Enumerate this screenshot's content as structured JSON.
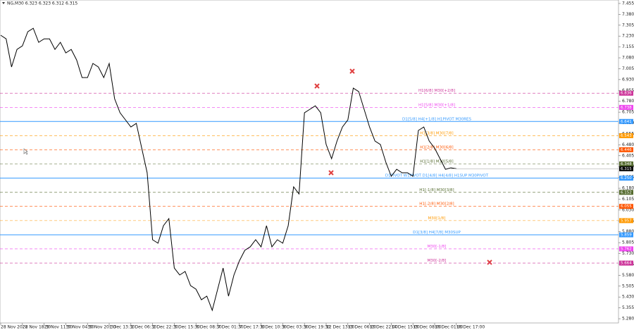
{
  "chart_data": {
    "type": "line",
    "title": "NG,M30  6.323 6.323 6.312 6.315",
    "categories": [
      "28 Nov 2022",
      null,
      null,
      null,
      "28 Nov 18:30",
      null,
      null,
      null,
      "29 Nov 11:30",
      null,
      null,
      null,
      "30 Nov 04:30",
      null,
      null,
      null,
      "30 Nov 20:30",
      null,
      null,
      null,
      "1 Dec 13:30",
      null,
      null,
      null,
      "2 Dec 06:30",
      null,
      null,
      null,
      "2 Dec 22:30",
      null,
      null,
      null,
      "5 Dec 15:30",
      null,
      null,
      null,
      "6 Dec 08:30",
      null,
      null,
      null,
      "7 Dec 01:30",
      null,
      null,
      null,
      "7 Dec 17:30",
      null,
      null,
      null,
      "8 Dec 10:30",
      null,
      null,
      null,
      "9 Dec 03:30",
      null,
      null,
      null,
      "9 Dec 19:30",
      null,
      null,
      null,
      "12 Dec 13:00",
      null,
      null,
      null,
      "13 Dec 06:00",
      null,
      null,
      null,
      "13 Dec 22:00",
      null,
      null,
      null,
      "14 Dec 15:00",
      null,
      null,
      null,
      "15 Dec 08:00",
      null,
      null,
      null,
      "16 Dec 01:00",
      null,
      null,
      null,
      "16 Dec 17:00"
    ],
    "series": [
      {
        "name": "NG,M30",
        "color": "#000000",
        "values": [
          7.236,
          7.211,
          7.017,
          7.138,
          7.163,
          7.26,
          7.284,
          7.187,
          7.211,
          7.211,
          7.138,
          7.187,
          7.114,
          7.138,
          7.065,
          6.944,
          6.944,
          7.041,
          7.017,
          6.944,
          7.041,
          6.798,
          6.701,
          6.652,
          6.603,
          6.628,
          6.457,
          6.287,
          5.825,
          5.801,
          5.922,
          5.971,
          5.63,
          5.582,
          5.606,
          5.509,
          5.484,
          5.411,
          5.436,
          5.338,
          5.484,
          5.63,
          5.436,
          5.582,
          5.679,
          5.752,
          5.776,
          5.825,
          5.776,
          5.922,
          5.776,
          5.825,
          5.801,
          5.922,
          6.19,
          6.141,
          6.701,
          6.725,
          6.749,
          6.701,
          6.482,
          6.384,
          6.506,
          6.603,
          6.652,
          6.871,
          6.847,
          6.725,
          6.603,
          6.506,
          6.482,
          6.36,
          6.263,
          6.311,
          6.287,
          6.287,
          6.263,
          6.579,
          6.603,
          6.506,
          6.457,
          6.384,
          6.311,
          6.321,
          6.315
        ]
      }
    ],
    "ylim": [
      5.251,
      7.479
    ],
    "yticks": [
      7.455,
      {
        "value": 7.38,
        "label": "7.380"
      },
      7.305,
      {
        "value": 7.23,
        "label": "7.230"
      },
      7.155,
      {
        "value": 7.08,
        "label": "7.080"
      },
      7.005,
      {
        "value": 6.93,
        "label": "6.930"
      },
      6.855,
      {
        "value": 6.78,
        "label": "6.780"
      },
      6.705,
      {
        "value": 6.63,
        "label": "6.630"
      },
      6.555,
      {
        "value": 6.48,
        "label": "6.480"
      },
      6.405,
      {
        "value": 6.33,
        "label": "6.330"
      },
      6.255,
      {
        "value": 6.18,
        "label": "6.180"
      },
      6.105,
      {
        "value": 6.03,
        "label": "6.030"
      },
      5.955,
      {
        "value": 5.88,
        "label": "5.880"
      },
      5.805,
      {
        "value": 5.73,
        "label": "5.730"
      },
      5.655,
      {
        "value": 5.58,
        "label": "5.580"
      },
      5.505,
      {
        "value": 5.43,
        "label": "5.430"
      },
      5.355,
      {
        "value": 5.28,
        "label": "5.280"
      }
    ],
    "levels": [
      {
        "name": "H1[6/8] M30[+2/8]",
        "price": 6.836,
        "color": "#cc3399",
        "dashed": true
      },
      {
        "name": "H1[5/8] M30[+1/8]",
        "price": 6.738,
        "color": "#ee44ee",
        "dashed": true
      },
      {
        "name": "D1[5/8] H4[+1/8] H1PIVOT M30RES",
        "price": 6.641,
        "color": "#3399ff",
        "dashed": false
      },
      {
        "name": "H1[3/8] M30[7/8]",
        "price": 6.543,
        "color": "#ff9900",
        "dashed": true
      },
      {
        "name": "H1[2/8] M30[6/8]",
        "price": 6.446,
        "color": "#ff5500",
        "dashed": true
      },
      {
        "name": "H1[1/8] M30[5/8]",
        "price": 6.348,
        "color": "#556b2f",
        "dashed": true
      },
      {
        "name": "D1PIVOT W1PIVOT D1[4/8] H4[4/8] H1SUP M30PIVOT",
        "price": {
          "value": 6.25,
          "label": "6.250"
        },
        "color": "#3399ff",
        "dashed": false
      },
      {
        "name": "H1[-1/8] M30[3/8]",
        "price": 6.152,
        "color": "#556b2f",
        "dashed": true
      },
      {
        "name": "H1[-2/8] M30[2/8]",
        "price": 6.055,
        "color": "#ff5500",
        "dashed": true
      },
      {
        "name": "M30[1/8]",
        "price": 5.957,
        "color": "#ff9900",
        "dashed": true
      },
      {
        "name": "D1[3/8] H4[7/8] M30SUP",
        "price": 5.859,
        "color": "#3399ff",
        "dashed": false
      },
      {
        "name": "M30[-1/8]",
        "price": 5.762,
        "color": "#ee44ee",
        "dashed": true
      },
      {
        "name": "M30[-2/8]",
        "price": 5.664,
        "color": "#cc3399",
        "dashed": true
      }
    ],
    "current_price": 6.315
  }
}
